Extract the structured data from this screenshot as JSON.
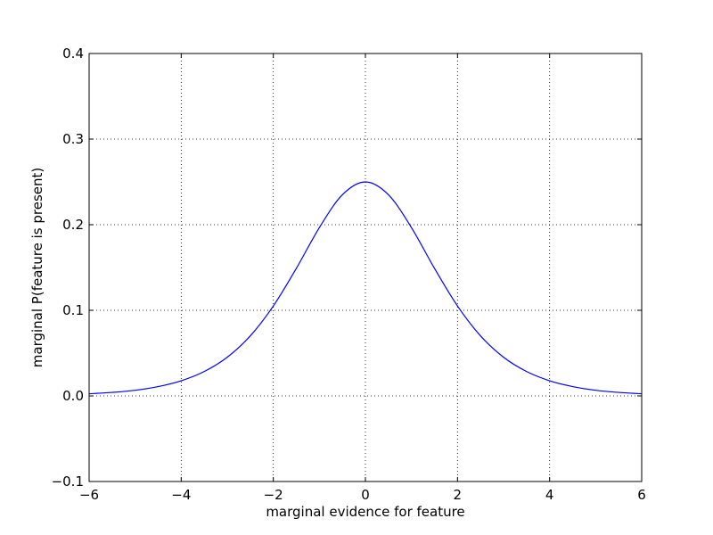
{
  "chart_data": {
    "type": "line",
    "title": "",
    "xlabel": "marginal evidence for feature",
    "ylabel": "marginal P(feature is present)",
    "xlim": [
      -6,
      6
    ],
    "ylim": [
      -0.1,
      0.4
    ],
    "xticks": [
      -6,
      -4,
      -2,
      0,
      2,
      4,
      6
    ],
    "xtick_labels": [
      "−6",
      "−4",
      "−2",
      "0",
      "2",
      "4",
      "6"
    ],
    "yticks": [
      -0.1,
      0.0,
      0.1,
      0.2,
      0.3,
      0.4
    ],
    "ytick_labels": [
      "−0.1",
      "0.0",
      "0.1",
      "0.2",
      "0.3",
      "0.4"
    ],
    "grid": true,
    "grid_style": "dotted",
    "series": [
      {
        "color": "#0000ff",
        "x": [
          -6,
          -5.5,
          -5,
          -4.5,
          -4,
          -3.5,
          -3,
          -2.5,
          -2,
          -1.5,
          -1,
          -0.5,
          0,
          0.5,
          1,
          1.5,
          2,
          2.5,
          3,
          3.5,
          4,
          4.5,
          5,
          5.5,
          6
        ],
        "y": [
          0.0025,
          0.0041,
          0.0066,
          0.0109,
          0.0177,
          0.0285,
          0.0452,
          0.0701,
          0.105,
          0.149,
          0.1966,
          0.235,
          0.25,
          0.235,
          0.1966,
          0.149,
          0.105,
          0.0701,
          0.0452,
          0.0285,
          0.0177,
          0.0109,
          0.0066,
          0.0041,
          0.0025
        ]
      }
    ]
  }
}
